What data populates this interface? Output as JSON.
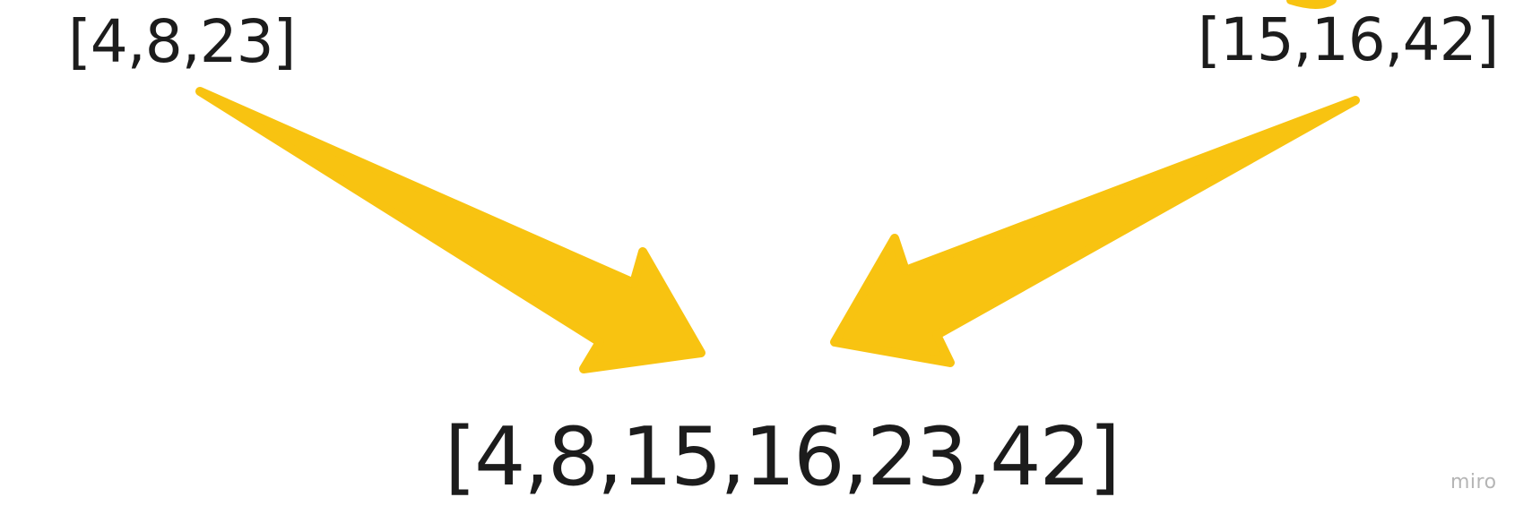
{
  "diagram": {
    "left_array": "[4,8,23]",
    "right_array": "[15,16,42]",
    "merged_array": "[4,8,15,16,23,42]",
    "watermark": "miro",
    "colors": {
      "arrow": "#f8c311",
      "text": "#1c1c1c",
      "watermark": "#b5b5b5",
      "background": "#ffffff"
    },
    "connectors": [
      {
        "from": "left_array",
        "to": "merged_array",
        "style": "tapered-arrow"
      },
      {
        "from": "right_array",
        "to": "merged_array",
        "style": "tapered-arrow"
      }
    ]
  }
}
